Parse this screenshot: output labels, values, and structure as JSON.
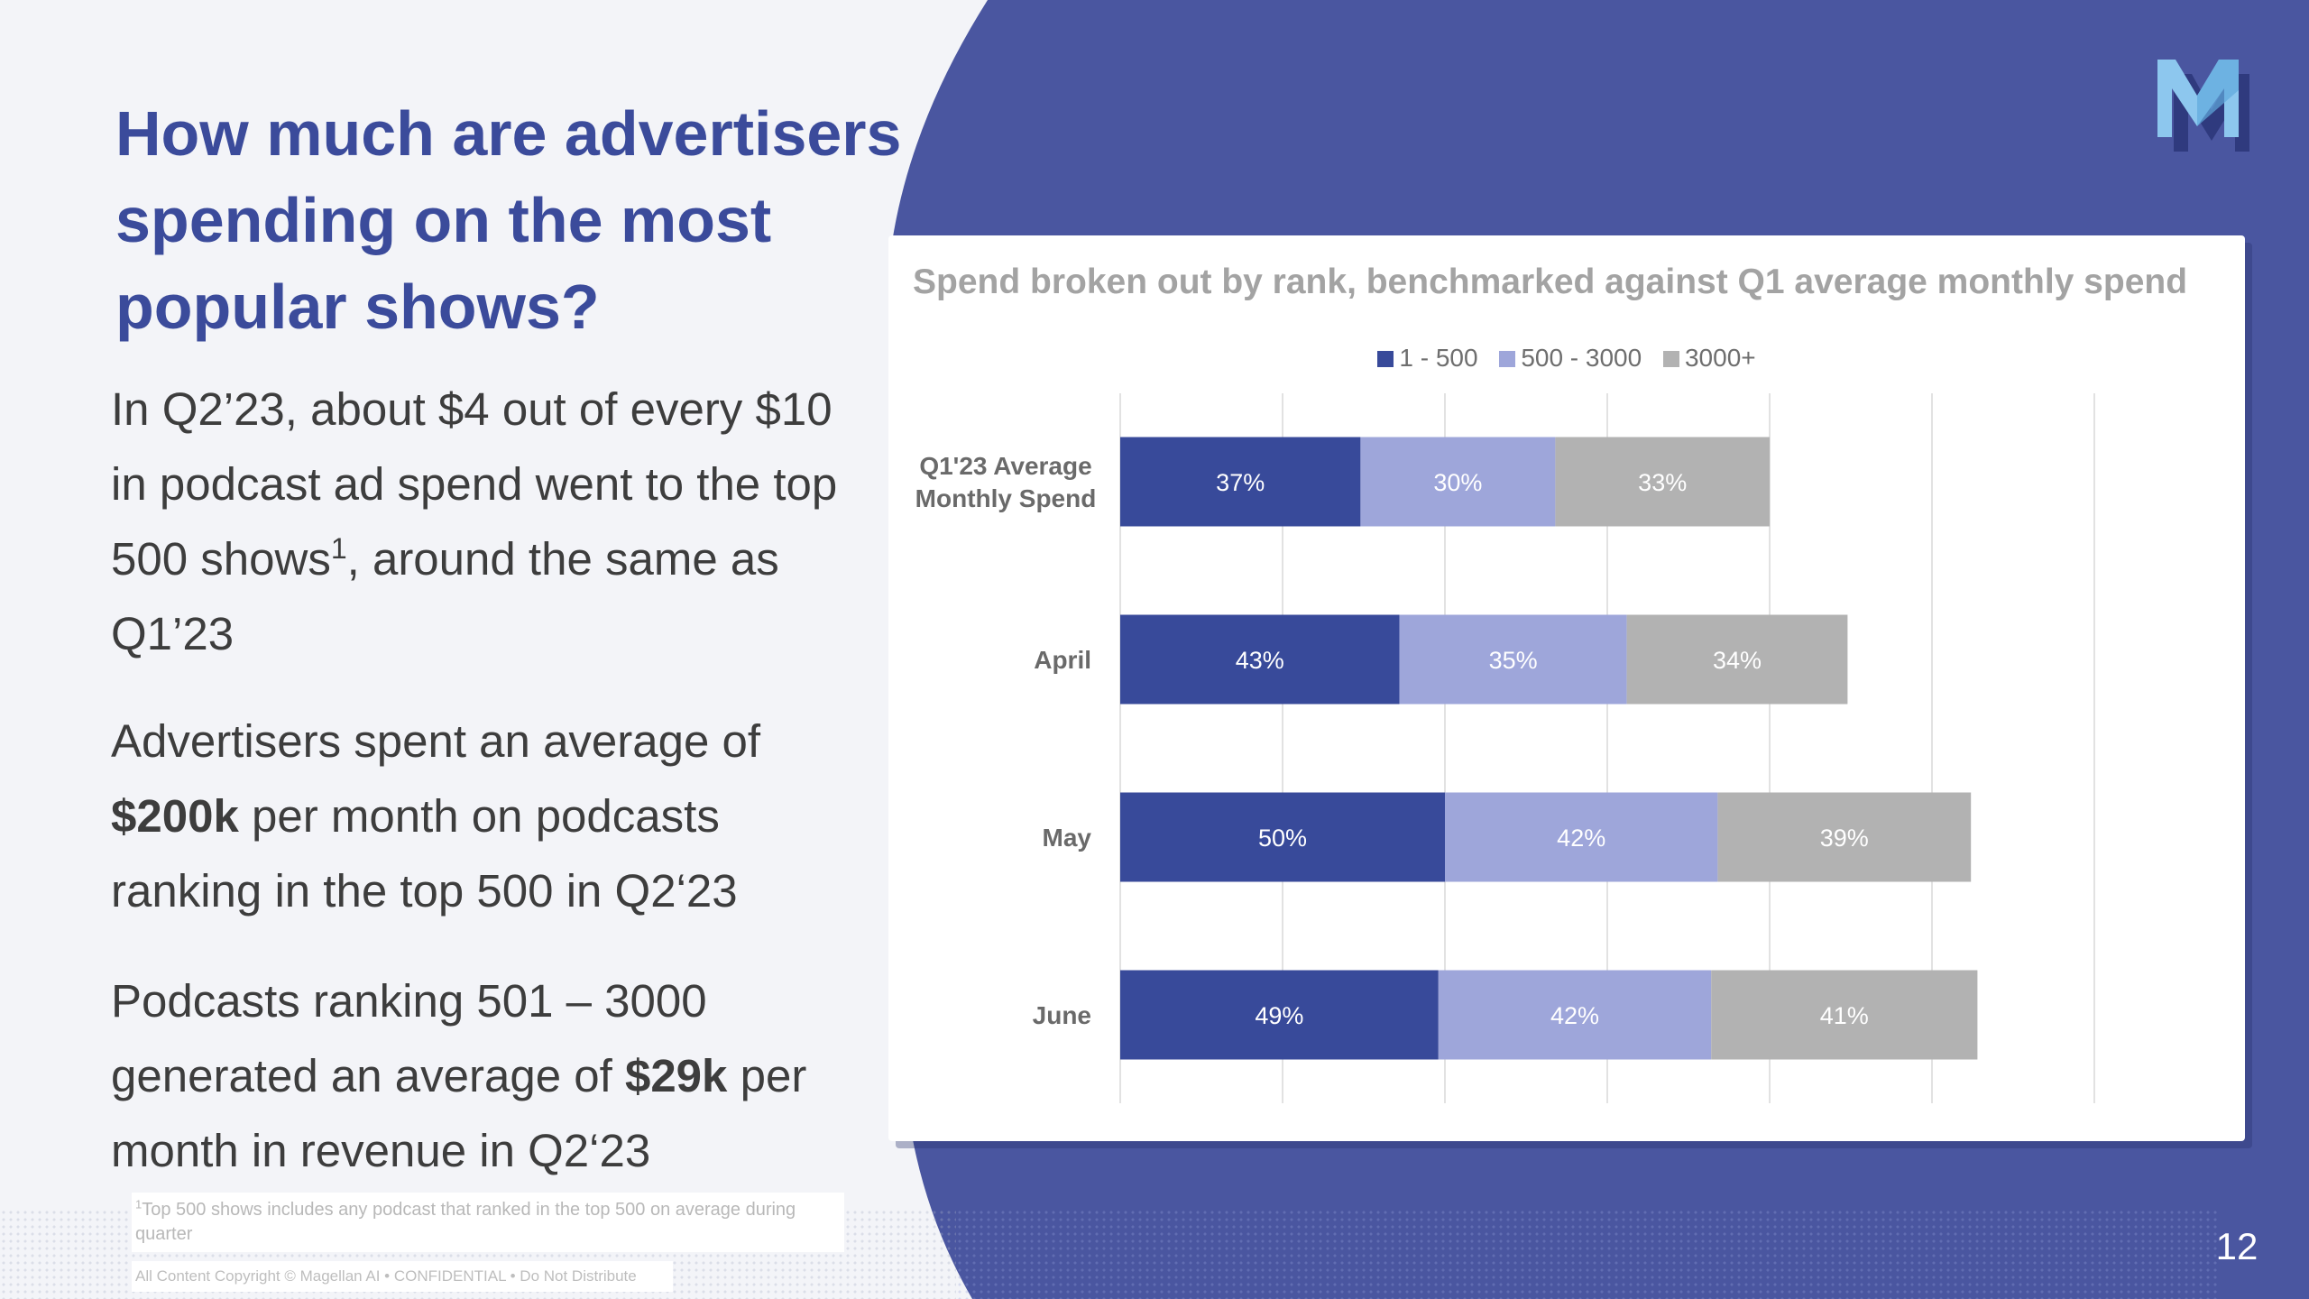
{
  "slide": {
    "title": "How much are advertisers spending on the most popular shows?",
    "paragraphs": {
      "p1_a": "In Q2’23, about $4 out of every $10 in podcast ad spend went to the top 500 shows",
      "p1_sup": "1",
      "p1_b": ", around the same as Q1’23",
      "p2_a": "Advertisers spent an average of ",
      "p2_bold": "$200k",
      "p2_b": " per month on podcasts ranking in the top 500 in Q2‘23",
      "p3_a": "Podcasts ranking 501 – 3000 generated an average of ",
      "p3_bold": "$29k",
      "p3_b": " per month in revenue in Q2‘23"
    },
    "footnote_marker": "1",
    "footnote": "Top 500 shows includes any podcast that ranked in the top 500 on average during quarter",
    "copyright": "All Content Copyright © Magellan AI  •  CONFIDENTIAL  •  Do Not Distribute",
    "page_number": "12",
    "logo_icon": "magellan-m-logo-icon"
  },
  "colors": {
    "accent_blue": "#3B4B9B",
    "background_blue": "#4A56A0",
    "series_1_500": "#384A9A",
    "series_500_3000": "#9EA6DA",
    "series_3000_plus": "#B2B2B2"
  },
  "chart_data": {
    "type": "bar",
    "orientation": "horizontal",
    "stacked": true,
    "title": "Spend broken out by rank, benchmarked against Q1 average monthly spend",
    "categories": [
      "Q1'23 Average Monthly Spend",
      "April",
      "May",
      "June"
    ],
    "series": [
      {
        "name": "1 - 500",
        "values": [
          37,
          43,
          50,
          49
        ]
      },
      {
        "name": "500 - 3000",
        "values": [
          30,
          35,
          42,
          42
        ]
      },
      {
        "name": "3000+",
        "values": [
          33,
          34,
          39,
          41
        ]
      }
    ],
    "value_suffix": "%",
    "xlim": [
      0,
      150
    ],
    "x_gridline_step": 25,
    "legend_position": "top",
    "grid": true
  }
}
